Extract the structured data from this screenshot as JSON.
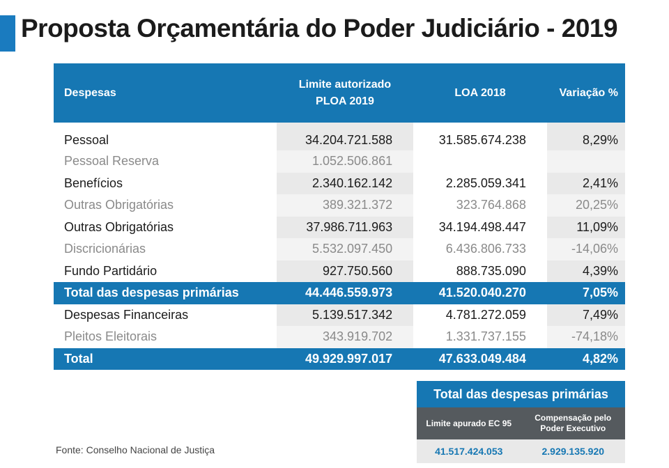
{
  "title": "Proposta Orçamentária do Poder Judiciário - 2019",
  "table": {
    "headers": {
      "despesas": "Despesas",
      "limite_line1": "Limite autorizado",
      "limite_line2": "PLOA 2019",
      "loa": "LOA 2018",
      "variacao": "Variação %"
    },
    "rows": [
      {
        "label": "Pessoal",
        "limite": "34.204.721.588",
        "loa": "31.585.674.238",
        "var": "8,29%",
        "style": "dark"
      },
      {
        "label": "Pessoal Reserva",
        "limite": "1.052.506.861",
        "loa": "",
        "var": "",
        "style": "light"
      },
      {
        "label": "Benefícios",
        "limite": "2.340.162.142",
        "loa": "2.285.059.341",
        "var": "2,41%",
        "style": "dark"
      },
      {
        "label": "Outras Obrigatórias",
        "limite": "389.321.372",
        "loa": "323.764.868",
        "var": "20,25%",
        "style": "light"
      },
      {
        "label": "Outras Obrigatórias",
        "limite": "37.986.711.963",
        "loa": "34.194.498.447",
        "var": "11,09%",
        "style": "dark"
      },
      {
        "label": "Discricionárias",
        "limite": "5.532.097.450",
        "loa": "6.436.806.733",
        "var": "-14,06%",
        "style": "light"
      },
      {
        "label": "Fundo Partidário",
        "limite": "927.750.560",
        "loa": "888.735.090",
        "var": "4,39%",
        "style": "dark"
      },
      {
        "label": "Total das despesas primárias",
        "limite": "44.446.559.973",
        "loa": "41.520.040.270",
        "var": "7,05%",
        "style": "hl"
      },
      {
        "label": "Despesas Financeiras",
        "limite": "5.139.517.342",
        "loa": "4.781.272.059",
        "var": "7,49%",
        "style": "dark"
      },
      {
        "label": "Pleitos Eleitorais",
        "limite": "343.919.702",
        "loa": "1.331.737.155",
        "var": "-74,18%",
        "style": "light"
      },
      {
        "label": "Total",
        "limite": "49.929.997.017",
        "loa": "47.633.049.484",
        "var": "4,82%",
        "style": "hl"
      }
    ]
  },
  "summary": {
    "title": "Total das despesas primárias",
    "col1_header": "Limite apurado EC 95",
    "col2_header_line1": "Compensação pelo",
    "col2_header_line2": "Poder Executivo",
    "col1_value": "41.517.424.053",
    "col2_value": "2.929.135.920"
  },
  "source": "Fonte: Conselho Nacional de Justiça",
  "colors": {
    "accent": "#1677b3",
    "header_dark": "#555a5e"
  }
}
